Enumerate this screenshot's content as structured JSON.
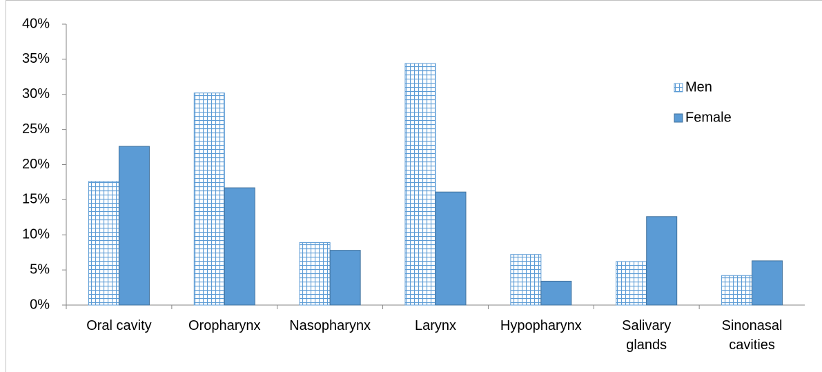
{
  "chart_data": {
    "type": "bar",
    "categories": [
      "Oral cavity",
      "Oropharynx",
      "Nasopharynx",
      "Larynx",
      "Hypopharynx",
      "Salivary\nglands",
      "Sinonasal\ncavities"
    ],
    "series": [
      {
        "name": "Men",
        "color": "#5b9bd5",
        "pattern": "grid",
        "values": [
          17.6,
          30.2,
          8.9,
          34.4,
          7.2,
          6.2,
          4.2
        ]
      },
      {
        "name": "Female",
        "color": "#5b9bd5",
        "pattern": "solid",
        "values": [
          22.6,
          16.7,
          7.8,
          16.1,
          3.4,
          12.6,
          6.3
        ]
      }
    ],
    "ylim": [
      0,
      40
    ],
    "yticks": [
      {
        "value": 0,
        "label": "0%"
      },
      {
        "value": 5,
        "label": "5%"
      },
      {
        "value": 10,
        "label": "10%"
      },
      {
        "value": 15,
        "label": "15%"
      },
      {
        "value": 20,
        "label": "20%"
      },
      {
        "value": 25,
        "label": "25%"
      },
      {
        "value": 30,
        "label": "30%"
      },
      {
        "value": 35,
        "label": "35%"
      },
      {
        "value": 40,
        "label": "40%"
      }
    ],
    "grid": false,
    "legend": "right"
  }
}
